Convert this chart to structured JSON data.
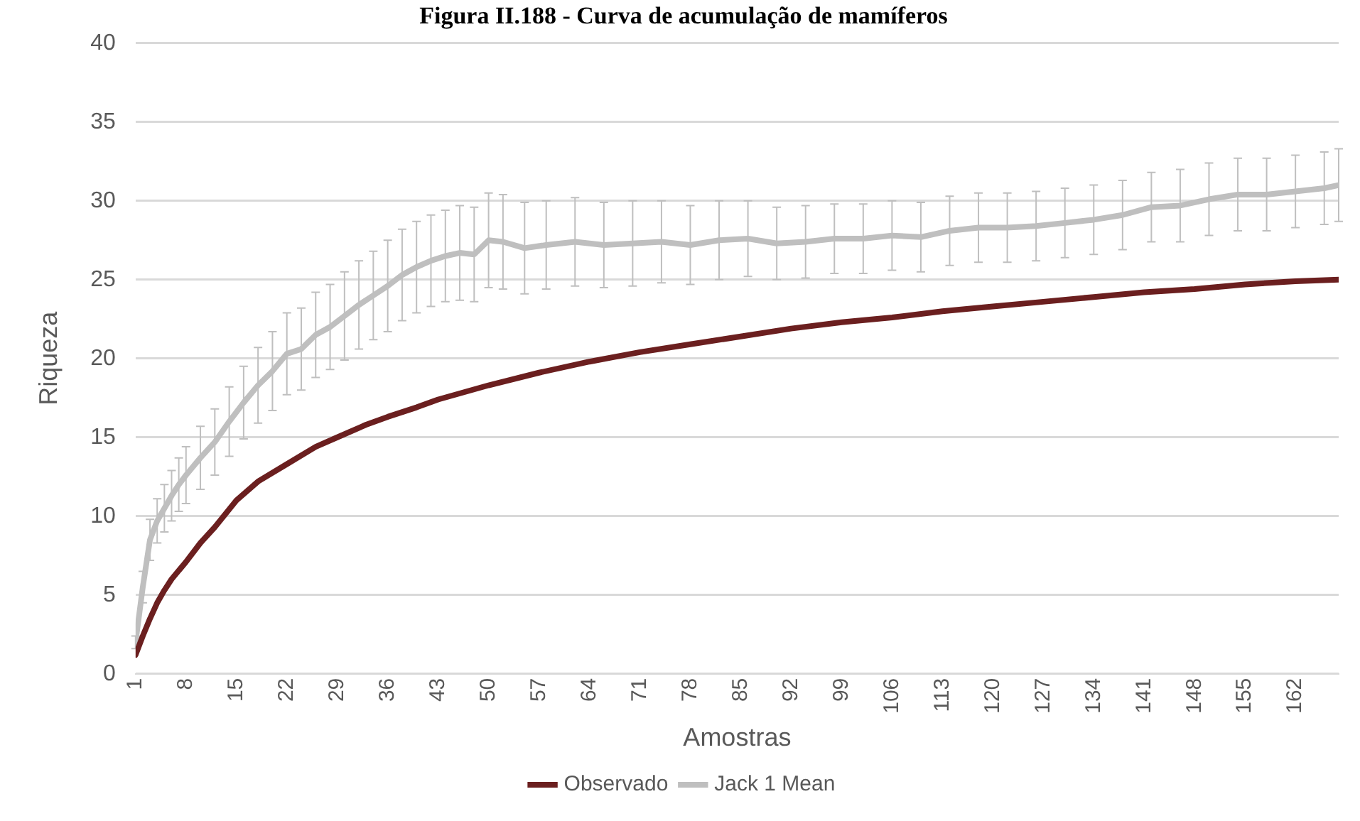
{
  "chart_data": {
    "type": "line",
    "title": "Figura II.188 - Curva de acumulação de mamíferos",
    "xlabel": "Amostras",
    "ylabel": "Riqueza",
    "xlim": [
      1,
      168
    ],
    "xticks": [
      1,
      8,
      15,
      22,
      29,
      36,
      43,
      50,
      57,
      64,
      71,
      78,
      85,
      92,
      99,
      106,
      113,
      120,
      127,
      134,
      141,
      148,
      155,
      162
    ],
    "ylim": [
      0,
      40
    ],
    "yticks": [
      0,
      5,
      10,
      15,
      20,
      25,
      30,
      35,
      40
    ],
    "grid": "y",
    "legend": "bottom",
    "marker": "none",
    "line_style": "solid",
    "series": [
      {
        "name": "Observado",
        "color": "#6b1f1f",
        "x": [
          1,
          2,
          3,
          4,
          5,
          6,
          8,
          10,
          12,
          15,
          18,
          22,
          26,
          29,
          33,
          36,
          40,
          43,
          50,
          57,
          64,
          71,
          78,
          85,
          92,
          99,
          106,
          113,
          120,
          127,
          134,
          141,
          148,
          155,
          162,
          168
        ],
        "values": [
          1.2,
          2.4,
          3.5,
          4.5,
          5.3,
          6.0,
          7.1,
          8.3,
          9.3,
          11.0,
          12.2,
          13.3,
          14.4,
          15.0,
          15.8,
          16.3,
          16.9,
          17.4,
          18.3,
          19.1,
          19.8,
          20.4,
          20.9,
          21.4,
          21.9,
          22.3,
          22.6,
          23.0,
          23.3,
          23.6,
          23.9,
          24.2,
          24.4,
          24.7,
          24.9,
          25.0
        ]
      },
      {
        "name": "Jack 1 Mean",
        "color": "#bfbfbf",
        "x": [
          1,
          2,
          3,
          4,
          5,
          6,
          7,
          8,
          10,
          12,
          14,
          16,
          18,
          20,
          22,
          24,
          26,
          28,
          30,
          32,
          34,
          36,
          38,
          40,
          42,
          44,
          46,
          48,
          50,
          52,
          55,
          58,
          62,
          66,
          70,
          74,
          78,
          82,
          86,
          90,
          94,
          98,
          102,
          106,
          110,
          114,
          118,
          122,
          126,
          130,
          134,
          138,
          142,
          146,
          150,
          154,
          158,
          162,
          166,
          168
        ],
        "values": [
          2.0,
          5.5,
          8.5,
          9.7,
          10.5,
          11.3,
          12.0,
          12.6,
          13.7,
          14.7,
          16.0,
          17.2,
          18.3,
          19.2,
          20.3,
          20.6,
          21.5,
          22.0,
          22.7,
          23.4,
          24.0,
          24.6,
          25.3,
          25.8,
          26.2,
          26.5,
          26.7,
          26.6,
          27.5,
          27.4,
          27.0,
          27.2,
          27.4,
          27.2,
          27.3,
          27.4,
          27.2,
          27.5,
          27.6,
          27.3,
          27.4,
          27.6,
          27.6,
          27.8,
          27.7,
          28.1,
          28.3,
          28.3,
          28.4,
          28.6,
          28.8,
          29.1,
          29.6,
          29.7,
          30.1,
          30.4,
          30.4,
          30.6,
          30.8,
          31.0
        ],
        "errors": [
          0.4,
          1.0,
          1.3,
          1.4,
          1.5,
          1.6,
          1.7,
          1.8,
          2.0,
          2.1,
          2.2,
          2.3,
          2.4,
          2.5,
          2.6,
          2.6,
          2.7,
          2.7,
          2.8,
          2.8,
          2.8,
          2.9,
          2.9,
          2.9,
          2.9,
          2.9,
          3.0,
          3.0,
          3.0,
          3.0,
          2.9,
          2.8,
          2.8,
          2.7,
          2.7,
          2.6,
          2.5,
          2.5,
          2.4,
          2.3,
          2.3,
          2.2,
          2.2,
          2.2,
          2.2,
          2.2,
          2.2,
          2.2,
          2.2,
          2.2,
          2.2,
          2.2,
          2.2,
          2.3,
          2.3,
          2.3,
          2.3,
          2.3,
          2.3,
          2.3
        ]
      }
    ]
  }
}
